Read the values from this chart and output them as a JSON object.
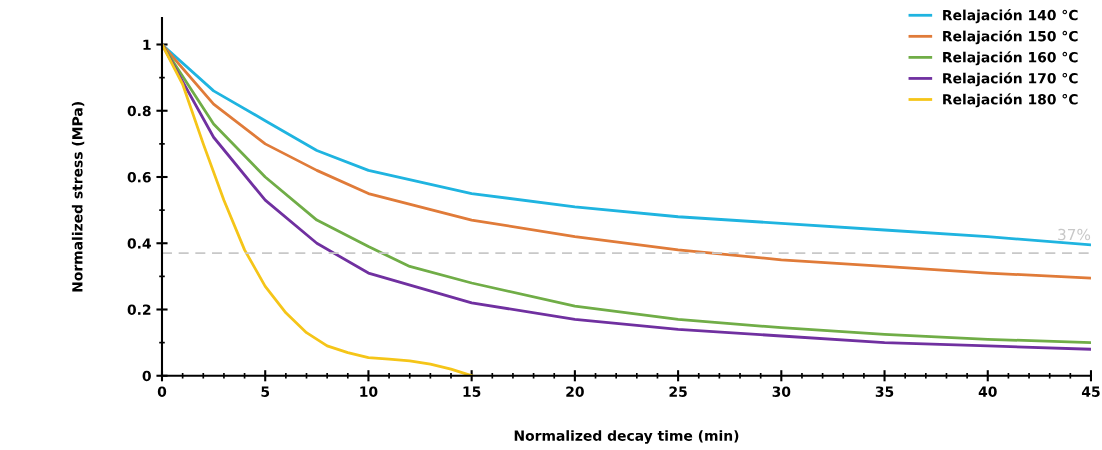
{
  "chart_data": {
    "type": "line",
    "xlabel": "Normalized decay time (min)",
    "ylabel": "Normalized stress (MPa)",
    "xlim": [
      0,
      45
    ],
    "ylim": [
      0,
      1.08
    ],
    "xticks": [
      0,
      5,
      10,
      15,
      20,
      25,
      30,
      35,
      40,
      45
    ],
    "yticks": [
      0,
      0.2,
      0.4,
      0.6,
      0.8,
      1
    ],
    "grid": false,
    "legend": "top right",
    "marker": "none",
    "line_style": "solid",
    "ref_lines": [
      {
        "axis": "y",
        "value": 0.37,
        "label": "37%",
        "color": "#c8c8c8",
        "line_style": "dashed"
      }
    ],
    "series": [
      {
        "name": "Relajación 140 °C",
        "color": "#1fb4e0",
        "x": [
          0,
          2.5,
          5,
          7.5,
          10,
          15,
          20,
          25,
          30,
          35,
          40,
          45
        ],
        "values": [
          1,
          0.86,
          0.77,
          0.68,
          0.62,
          0.55,
          0.51,
          0.48,
          0.46,
          0.44,
          0.42,
          0.395
        ]
      },
      {
        "name": "Relajación 150 °C",
        "color": "#e07b39",
        "x": [
          0,
          2.5,
          5,
          7.5,
          10,
          15,
          20,
          25,
          30,
          35,
          40,
          45
        ],
        "values": [
          1,
          0.82,
          0.7,
          0.62,
          0.55,
          0.47,
          0.42,
          0.38,
          0.35,
          0.33,
          0.31,
          0.295
        ]
      },
      {
        "name": "Relajación 160 °C",
        "color": "#70ad47",
        "x": [
          0,
          2.5,
          5,
          7.5,
          10,
          12,
          15,
          20,
          25,
          30,
          35,
          40,
          45
        ],
        "values": [
          1,
          0.76,
          0.6,
          0.47,
          0.39,
          0.33,
          0.28,
          0.21,
          0.17,
          0.145,
          0.125,
          0.11,
          0.1
        ]
      },
      {
        "name": "Relajación 170 °C",
        "color": "#7030a0",
        "x": [
          0,
          2.5,
          5,
          7.5,
          10,
          15,
          20,
          25,
          30,
          35,
          40,
          45
        ],
        "values": [
          1,
          0.72,
          0.53,
          0.4,
          0.31,
          0.22,
          0.17,
          0.14,
          0.12,
          0.1,
          0.09,
          0.08
        ]
      },
      {
        "name": "Relajación 180 °C",
        "color": "#f5c518",
        "x": [
          0,
          1,
          2,
          3,
          4,
          5,
          6,
          7,
          8,
          9,
          10,
          11,
          12,
          13,
          14,
          15
        ],
        "values": [
          1,
          0.88,
          0.7,
          0.53,
          0.38,
          0.27,
          0.19,
          0.13,
          0.09,
          0.07,
          0.055,
          0.05,
          0.045,
          0.035,
          0.02,
          0
        ]
      }
    ]
  }
}
